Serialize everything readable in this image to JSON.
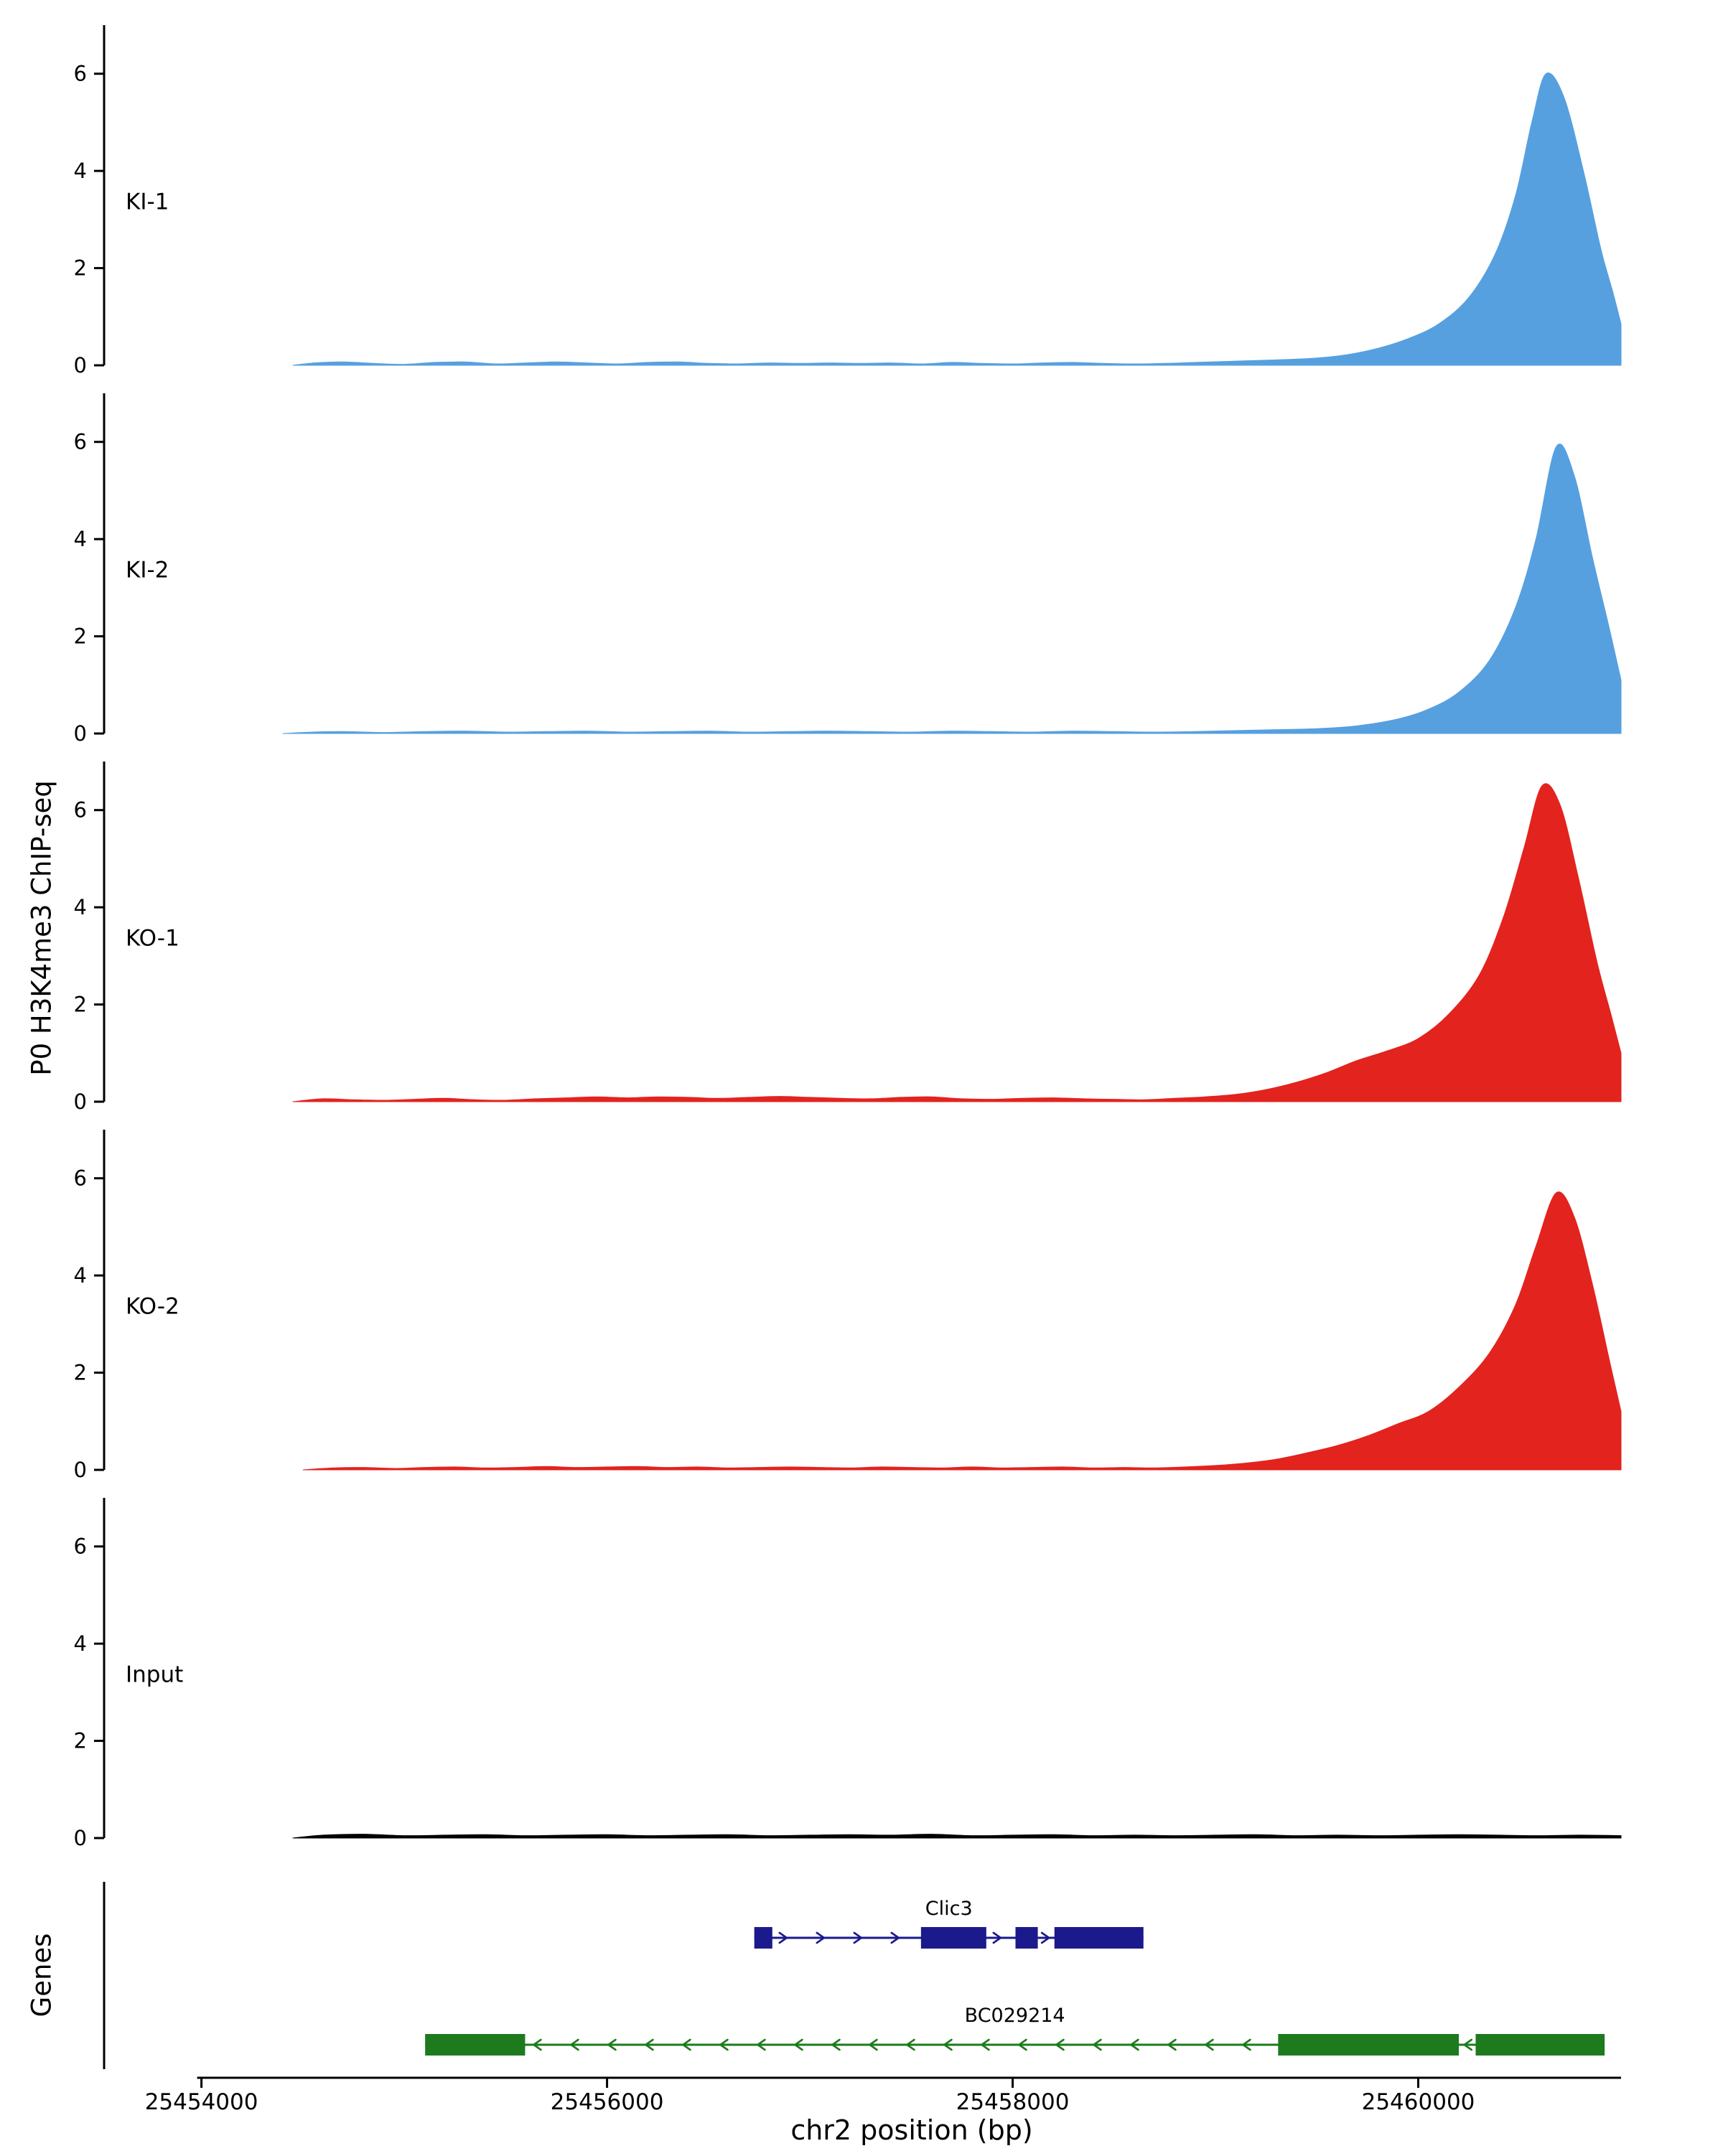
{
  "chart_data": {
    "type": "area",
    "title": "",
    "xlabel": "chr2 position (bp)",
    "ylabel": "P0 H3K4me3 ChIP-seq",
    "xlim": [
      25453520,
      25461000
    ],
    "ylim": [
      0,
      7
    ],
    "x_ticks": [
      25454000,
      25456000,
      25458000,
      25460000
    ],
    "y_ticks": [
      0,
      2,
      4,
      6
    ],
    "grid": false,
    "legend": false,
    "tracks": [
      {
        "label": "KI-1",
        "color": "#56A0E0",
        "points": [
          [
            25454450,
            0
          ],
          [
            25454560,
            0.05
          ],
          [
            25454700,
            0.07
          ],
          [
            25454850,
            0.04
          ],
          [
            25455000,
            0.02
          ],
          [
            25455150,
            0.06
          ],
          [
            25455300,
            0.07
          ],
          [
            25455450,
            0.03
          ],
          [
            25455600,
            0.05
          ],
          [
            25455750,
            0.07
          ],
          [
            25455900,
            0.05
          ],
          [
            25456050,
            0.03
          ],
          [
            25456200,
            0.06
          ],
          [
            25456350,
            0.07
          ],
          [
            25456500,
            0.04
          ],
          [
            25456650,
            0.03
          ],
          [
            25456800,
            0.05
          ],
          [
            25456950,
            0.04
          ],
          [
            25457100,
            0.05
          ],
          [
            25457250,
            0.04
          ],
          [
            25457400,
            0.05
          ],
          [
            25457550,
            0.03
          ],
          [
            25457700,
            0.06
          ],
          [
            25457850,
            0.04
          ],
          [
            25458000,
            0.03
          ],
          [
            25458150,
            0.05
          ],
          [
            25458300,
            0.06
          ],
          [
            25458450,
            0.04
          ],
          [
            25458600,
            0.03
          ],
          [
            25458750,
            0.04
          ],
          [
            25458900,
            0.06
          ],
          [
            25459050,
            0.08
          ],
          [
            25459200,
            0.1
          ],
          [
            25459350,
            0.12
          ],
          [
            25459500,
            0.15
          ],
          [
            25459650,
            0.22
          ],
          [
            25459800,
            0.35
          ],
          [
            25459950,
            0.55
          ],
          [
            25460100,
            0.85
          ],
          [
            25460250,
            1.4
          ],
          [
            25460380,
            2.3
          ],
          [
            25460480,
            3.5
          ],
          [
            25460560,
            5.0
          ],
          [
            25460630,
            6.0
          ],
          [
            25460720,
            5.5
          ],
          [
            25460820,
            3.9
          ],
          [
            25460900,
            2.4
          ],
          [
            25460960,
            1.5
          ],
          [
            25461000,
            0.85
          ]
        ]
      },
      {
        "label": "KI-2",
        "color": "#56A0E0",
        "points": [
          [
            25454400,
            0
          ],
          [
            25454550,
            0.03
          ],
          [
            25454700,
            0.04
          ],
          [
            25454900,
            0.02
          ],
          [
            25455100,
            0.04
          ],
          [
            25455300,
            0.05
          ],
          [
            25455500,
            0.03
          ],
          [
            25455700,
            0.04
          ],
          [
            25455900,
            0.05
          ],
          [
            25456100,
            0.03
          ],
          [
            25456300,
            0.04
          ],
          [
            25456500,
            0.05
          ],
          [
            25456700,
            0.03
          ],
          [
            25456900,
            0.04
          ],
          [
            25457100,
            0.05
          ],
          [
            25457300,
            0.04
          ],
          [
            25457500,
            0.03
          ],
          [
            25457700,
            0.05
          ],
          [
            25457900,
            0.04
          ],
          [
            25458100,
            0.03
          ],
          [
            25458300,
            0.05
          ],
          [
            25458500,
            0.04
          ],
          [
            25458700,
            0.03
          ],
          [
            25458900,
            0.04
          ],
          [
            25459100,
            0.06
          ],
          [
            25459300,
            0.08
          ],
          [
            25459500,
            0.1
          ],
          [
            25459700,
            0.16
          ],
          [
            25459900,
            0.3
          ],
          [
            25460050,
            0.5
          ],
          [
            25460200,
            0.85
          ],
          [
            25460350,
            1.5
          ],
          [
            25460480,
            2.6
          ],
          [
            25460580,
            4.0
          ],
          [
            25460680,
            5.9
          ],
          [
            25460770,
            5.3
          ],
          [
            25460860,
            3.6
          ],
          [
            25460940,
            2.2
          ],
          [
            25461000,
            1.1
          ]
        ]
      },
      {
        "label": "KO-1",
        "color": "#E3231E",
        "points": [
          [
            25454450,
            0
          ],
          [
            25454600,
            0.06
          ],
          [
            25454750,
            0.04
          ],
          [
            25454900,
            0.03
          ],
          [
            25455050,
            0.05
          ],
          [
            25455200,
            0.07
          ],
          [
            25455350,
            0.04
          ],
          [
            25455500,
            0.03
          ],
          [
            25455650,
            0.06
          ],
          [
            25455800,
            0.08
          ],
          [
            25455950,
            0.1
          ],
          [
            25456100,
            0.08
          ],
          [
            25456250,
            0.1
          ],
          [
            25456400,
            0.09
          ],
          [
            25456550,
            0.07
          ],
          [
            25456700,
            0.09
          ],
          [
            25456850,
            0.11
          ],
          [
            25457000,
            0.09
          ],
          [
            25457150,
            0.07
          ],
          [
            25457300,
            0.06
          ],
          [
            25457450,
            0.09
          ],
          [
            25457600,
            0.1
          ],
          [
            25457750,
            0.06
          ],
          [
            25457900,
            0.05
          ],
          [
            25458050,
            0.07
          ],
          [
            25458200,
            0.08
          ],
          [
            25458350,
            0.06
          ],
          [
            25458500,
            0.05
          ],
          [
            25458650,
            0.04
          ],
          [
            25458800,
            0.07
          ],
          [
            25458950,
            0.1
          ],
          [
            25459100,
            0.15
          ],
          [
            25459250,
            0.25
          ],
          [
            25459400,
            0.4
          ],
          [
            25459550,
            0.6
          ],
          [
            25459700,
            0.85
          ],
          [
            25459850,
            1.05
          ],
          [
            25460000,
            1.3
          ],
          [
            25460150,
            1.8
          ],
          [
            25460300,
            2.6
          ],
          [
            25460420,
            3.8
          ],
          [
            25460520,
            5.2
          ],
          [
            25460610,
            6.5
          ],
          [
            25460700,
            6.1
          ],
          [
            25460790,
            4.6
          ],
          [
            25460880,
            2.9
          ],
          [
            25460950,
            1.8
          ],
          [
            25461000,
            1.0
          ]
        ]
      },
      {
        "label": "KO-2",
        "color": "#E3231E",
        "points": [
          [
            25454500,
            0
          ],
          [
            25454650,
            0.04
          ],
          [
            25454800,
            0.05
          ],
          [
            25454950,
            0.03
          ],
          [
            25455100,
            0.05
          ],
          [
            25455250,
            0.06
          ],
          [
            25455400,
            0.04
          ],
          [
            25455550,
            0.05
          ],
          [
            25455700,
            0.07
          ],
          [
            25455850,
            0.05
          ],
          [
            25456000,
            0.06
          ],
          [
            25456150,
            0.07
          ],
          [
            25456300,
            0.05
          ],
          [
            25456450,
            0.06
          ],
          [
            25456600,
            0.04
          ],
          [
            25456750,
            0.05
          ],
          [
            25456900,
            0.06
          ],
          [
            25457050,
            0.05
          ],
          [
            25457200,
            0.04
          ],
          [
            25457350,
            0.06
          ],
          [
            25457500,
            0.05
          ],
          [
            25457650,
            0.04
          ],
          [
            25457800,
            0.06
          ],
          [
            25457950,
            0.04
          ],
          [
            25458100,
            0.05
          ],
          [
            25458250,
            0.06
          ],
          [
            25458400,
            0.04
          ],
          [
            25458550,
            0.05
          ],
          [
            25458700,
            0.04
          ],
          [
            25458850,
            0.06
          ],
          [
            25459000,
            0.09
          ],
          [
            25459150,
            0.14
          ],
          [
            25459300,
            0.22
          ],
          [
            25459450,
            0.35
          ],
          [
            25459600,
            0.5
          ],
          [
            25459750,
            0.7
          ],
          [
            25459900,
            0.95
          ],
          [
            25460050,
            1.2
          ],
          [
            25460200,
            1.7
          ],
          [
            25460350,
            2.4
          ],
          [
            25460480,
            3.4
          ],
          [
            25460580,
            4.6
          ],
          [
            25460680,
            5.7
          ],
          [
            25460770,
            5.2
          ],
          [
            25460860,
            3.8
          ],
          [
            25460940,
            2.3
          ],
          [
            25461000,
            1.2
          ]
        ]
      },
      {
        "label": "Input",
        "color": "#000000",
        "points": [
          [
            25454450,
            0
          ],
          [
            25454600,
            0.06
          ],
          [
            25454800,
            0.08
          ],
          [
            25455000,
            0.05
          ],
          [
            25455200,
            0.06
          ],
          [
            25455400,
            0.07
          ],
          [
            25455600,
            0.05
          ],
          [
            25455800,
            0.06
          ],
          [
            25456000,
            0.07
          ],
          [
            25456200,
            0.05
          ],
          [
            25456400,
            0.06
          ],
          [
            25456600,
            0.07
          ],
          [
            25456800,
            0.05
          ],
          [
            25457000,
            0.06
          ],
          [
            25457200,
            0.07
          ],
          [
            25457400,
            0.06
          ],
          [
            25457600,
            0.08
          ],
          [
            25457800,
            0.05
          ],
          [
            25458000,
            0.06
          ],
          [
            25458200,
            0.07
          ],
          [
            25458400,
            0.05
          ],
          [
            25458600,
            0.06
          ],
          [
            25458800,
            0.05
          ],
          [
            25459000,
            0.06
          ],
          [
            25459200,
            0.07
          ],
          [
            25459400,
            0.05
          ],
          [
            25459600,
            0.06
          ],
          [
            25459800,
            0.05
          ],
          [
            25460000,
            0.06
          ],
          [
            25460200,
            0.07
          ],
          [
            25460400,
            0.06
          ],
          [
            25460600,
            0.05
          ],
          [
            25460800,
            0.06
          ],
          [
            25461000,
            0.05
          ]
        ]
      }
    ],
    "genes_panel": {
      "label": "Genes",
      "genes": [
        {
          "name": "Clic3",
          "color": "#1A1A8C",
          "strand": "+",
          "start": 25456726,
          "end": 25458645,
          "exons": [
            [
              25456726,
              25456815
            ],
            [
              25457548,
              25457870
            ],
            [
              25458014,
              25458124
            ],
            [
              25458206,
              25458645
            ]
          ]
        },
        {
          "name": "BC029214",
          "color": "#1D7A1D",
          "strand": "-",
          "start": 25455103,
          "end": 25460919,
          "exons": [
            [
              25455103,
              25455596
            ],
            [
              25459309,
              25460200
            ],
            [
              25460283,
              25460919
            ]
          ]
        }
      ]
    }
  }
}
